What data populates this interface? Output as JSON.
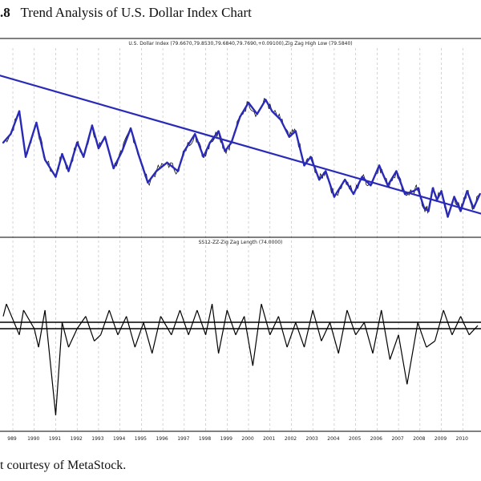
{
  "figure": {
    "number": ".8",
    "title": "Trend Analysis of U.S. Dollar Index Chart",
    "credit": "t courtesy of MetaStock."
  },
  "chart_data": [
    {
      "type": "line",
      "title": "U.S. Dollar Index (79.6670,79.8530,79.6840,79.7690,+0.09100),Zig Zag High Low (79.5840)",
      "x_labels": [
        "989",
        "1990",
        "1991",
        "1992",
        "1993",
        "1994",
        "1995",
        "1996",
        "1997",
        "1998",
        "1999",
        "2000",
        "2001",
        "2002",
        "2003",
        "2004",
        "2005",
        "2006",
        "2007",
        "2008",
        "2009",
        "2010"
      ],
      "grid": true,
      "legend": "none",
      "colors": {
        "price": "#111111",
        "zigzag": "#2a2ab8",
        "trendline": "#2a2ab8"
      },
      "series": [
        {
          "role": "zigzag",
          "x": [
            1988.55,
            1988.9,
            1989.3,
            1989.6,
            1990.1,
            1990.5,
            1991.0,
            1991.3,
            1991.6,
            1992.0,
            1992.3,
            1992.7,
            1993.0,
            1993.3,
            1993.7,
            1994.1,
            1994.5,
            1994.9,
            1995.3,
            1995.7,
            1996.2,
            1996.7,
            1997.0,
            1997.5,
            1997.9,
            1998.2,
            1998.6,
            1998.9,
            1999.2,
            1999.6,
            2000.0,
            2000.4,
            2000.8,
            2001.1,
            2001.5,
            2001.9,
            2002.2,
            2002.6,
            2002.9,
            2003.3,
            2003.6,
            2004.0,
            2004.5,
            2004.9,
            2005.3,
            2005.7,
            2006.1,
            2006.5,
            2006.9,
            2007.3,
            2007.7,
            2007.9,
            2008.2,
            2008.4,
            2008.6,
            2008.8,
            2009.0,
            2009.3,
            2009.6,
            2009.9,
            2010.2,
            2010.5,
            2010.8
          ],
          "y": [
            107,
            110,
            118,
            102,
            114,
            101,
            95,
            103,
            97,
            107,
            102,
            113,
            105,
            109,
            98,
            104,
            112,
            102,
            93,
            97,
            100,
            97,
            104,
            110,
            102,
            107,
            111,
            104,
            107,
            116,
            121,
            117,
            122,
            118,
            115,
            109,
            111,
            99,
            102,
            94,
            97,
            88,
            94,
            89,
            95,
            92,
            99,
            92,
            97,
            89,
            90,
            91,
            84,
            83,
            91,
            87,
            90,
            81,
            88,
            83,
            90,
            84,
            89
          ]
        },
        {
          "role": "trendline",
          "x": [
            1987.7,
            2010.9
          ],
          "y": [
            132,
            82
          ]
        },
        {
          "role": "zigzag-length",
          "x": [
            1988.55,
            1988.7,
            1989.3,
            1989.5,
            1990.0,
            1990.2,
            1990.5,
            1991.0,
            1991.3,
            1991.6,
            1992.0,
            1992.4,
            1992.8,
            1993.1,
            1993.5,
            1993.9,
            1994.3,
            1994.7,
            1995.1,
            1995.5,
            1995.9,
            1996.4,
            1996.8,
            1997.2,
            1997.6,
            1998.0,
            1998.3,
            1998.6,
            1999.0,
            1999.4,
            1999.8,
            2000.2,
            2000.6,
            2001.0,
            2001.4,
            2001.8,
            2002.2,
            2002.6,
            2003.0,
            2003.4,
            2003.8,
            2004.2,
            2004.6,
            2005.0,
            2005.4,
            2005.8,
            2006.2,
            2006.6,
            2007.0,
            2007.4,
            2007.9,
            2008.3,
            2008.7,
            2009.1,
            2009.5,
            2009.9,
            2010.3,
            2010.7
          ],
          "y": [
            2,
            4,
            -1,
            3,
            0,
            -3,
            3,
            -14,
            1,
            -3,
            0,
            2,
            -2,
            -1,
            3,
            -1,
            2,
            -3,
            1,
            -4,
            2,
            -1,
            3,
            -1,
            3,
            -1,
            4,
            -4,
            3,
            -1,
            2,
            -6,
            4,
            -1,
            2,
            -3,
            1,
            -3,
            3,
            -2,
            1,
            -4,
            3,
            -1,
            1,
            -4,
            3,
            -5,
            -1,
            -9,
            1,
            -3,
            -2,
            3,
            -1,
            2,
            -1,
            0.5
          ]
        }
      ]
    },
    {
      "type": "line",
      "title": "SS12-ZZ-Zig Zag Length (74.0000)",
      "grid": true,
      "legend": "none"
    }
  ]
}
